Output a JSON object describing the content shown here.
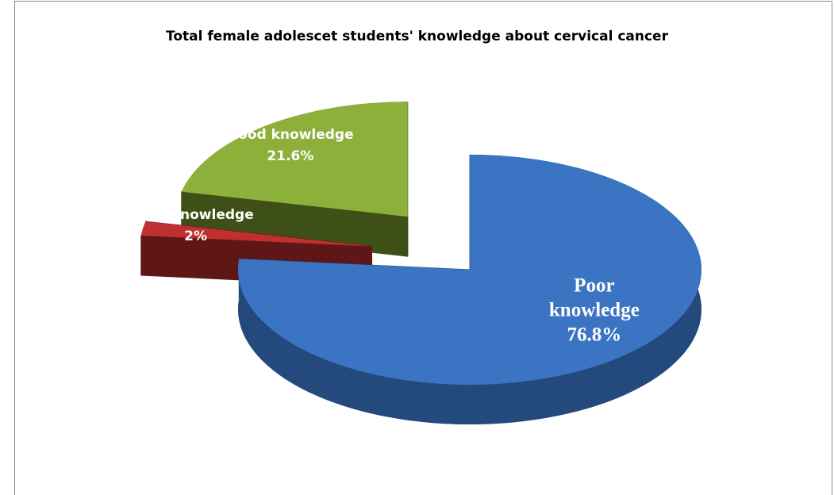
{
  "chart_data": {
    "type": "pie3d",
    "title": "Total female adolescet students' knowledge about cervical cancer",
    "categories": [
      "Poor knowledge",
      "Fair knowledge",
      "Good knowledge"
    ],
    "values": [
      76.8,
      2,
      21.6
    ],
    "value_labels": [
      "76.8%",
      "2%",
      "21.6%"
    ],
    "colors": [
      "#3b74c2",
      "#c0302e",
      "#8db03a"
    ],
    "side_colors": [
      "#24497d",
      "#5e1616",
      "#3e4f17"
    ]
  }
}
